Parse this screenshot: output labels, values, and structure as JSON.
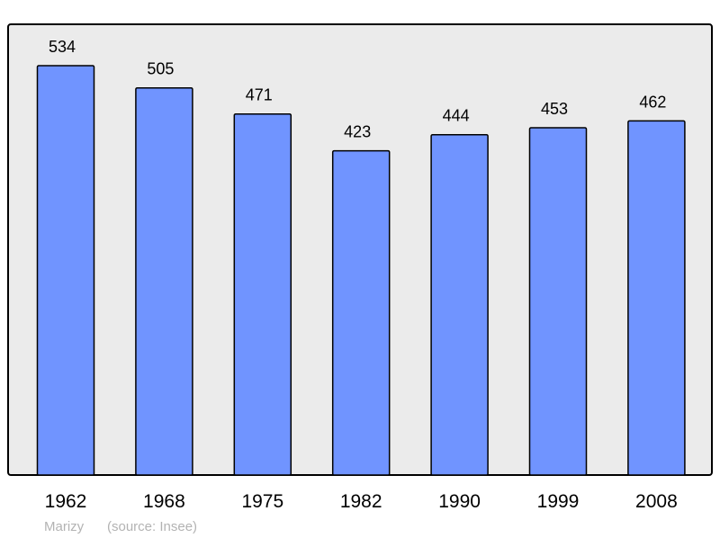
{
  "chart_data": {
    "type": "bar",
    "categories": [
      "1962",
      "1968",
      "1975",
      "1982",
      "1990",
      "1999",
      "2008"
    ],
    "values": [
      534,
      505,
      471,
      423,
      444,
      453,
      462
    ],
    "title": "",
    "xlabel": "",
    "ylabel": "",
    "ylim": [
      0,
      588
    ],
    "grid": false,
    "data_labels": true,
    "bar_color": "#7094ff",
    "background_color": "#ebebeb",
    "caption": {
      "place": "Marizy",
      "source": "(source: Insee)"
    }
  }
}
